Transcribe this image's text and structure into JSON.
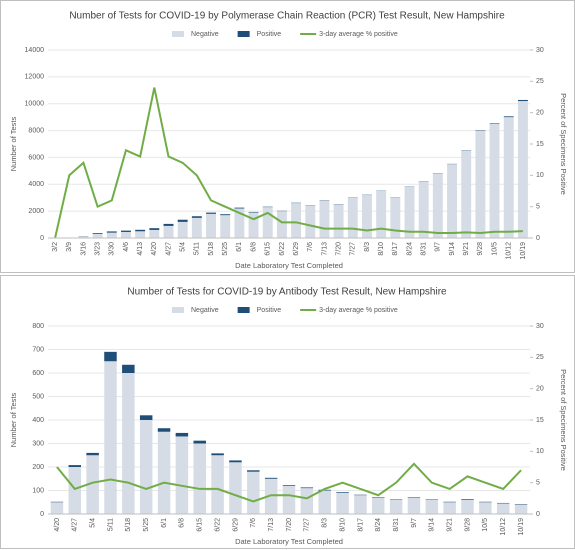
{
  "chart_data": [
    {
      "type": "bar",
      "stacked": true,
      "title": "Number of Tests for COVID-19 by Polymerase Chain Reaction (PCR) Test Result, New Hampshire",
      "x_label": "Date Laboratory Test Completed",
      "y_label": "Number of Tests",
      "y2_label": "Percent of Specimens Positive",
      "categories": [
        "3/2",
        "3/9",
        "3/16",
        "3/23",
        "3/30",
        "4/6",
        "4/13",
        "4/20",
        "4/27",
        "5/4",
        "5/11",
        "5/18",
        "5/25",
        "6/1",
        "6/8",
        "6/15",
        "6/22",
        "6/29",
        "7/6",
        "7/13",
        "7/20",
        "7/27",
        "8/3",
        "8/10",
        "8/17",
        "8/24",
        "8/31",
        "9/7",
        "9/14",
        "9/21",
        "9/28",
        "10/5",
        "10/12",
        "10/19"
      ],
      "series": [
        {
          "name": "Negative",
          "color": "#d6dce5",
          "values": [
            0,
            20,
            100,
            300,
            400,
            450,
            500,
            600,
            900,
            1200,
            1500,
            1800,
            1700,
            2200,
            1900,
            2300,
            2000,
            2600,
            2400,
            2800,
            2500,
            3000,
            3200,
            3500,
            3000,
            3800,
            4200,
            4800,
            5500,
            6500,
            8000,
            8500,
            9000,
            10200
          ]
        },
        {
          "name": "Positive",
          "color": "#1f4e79",
          "values": [
            0,
            5,
            20,
            60,
            90,
            100,
            110,
            130,
            150,
            160,
            120,
            90,
            70,
            60,
            40,
            30,
            25,
            25,
            25,
            20,
            20,
            20,
            20,
            20,
            20,
            20,
            20,
            20,
            20,
            25,
            30,
            40,
            60,
            80
          ]
        },
        {
          "name": "3-day average % positive",
          "color": "#70ad47",
          "type": "line",
          "axis": "y2",
          "values": [
            0,
            10,
            12,
            5,
            6,
            14,
            13,
            24,
            13,
            12,
            10,
            6,
            5,
            4,
            3,
            4,
            2.5,
            2.5,
            2,
            1.5,
            1.5,
            1.5,
            1.2,
            1.5,
            1.2,
            1,
            1,
            0.8,
            0.8,
            0.9,
            0.8,
            1,
            1,
            1.1
          ]
        }
      ],
      "ylim": [
        0,
        14000
      ],
      "yticks": [
        0,
        2000,
        4000,
        6000,
        8000,
        10000,
        12000,
        14000
      ],
      "y2lim": [
        0,
        30
      ],
      "y2ticks": [
        0,
        5,
        10,
        15,
        20,
        25,
        30
      ]
    },
    {
      "type": "bar",
      "stacked": true,
      "title": "Number of Tests for COVID-19 by Antibody Test Result, New Hampshire",
      "x_label": "Date Laboratory Test Completed",
      "y_label": "Number of Tests",
      "y2_label": "Percent of Specimens Positive",
      "categories": [
        "4/20",
        "4/27",
        "5/4",
        "5/11",
        "5/18",
        "5/25",
        "6/1",
        "6/8",
        "6/15",
        "6/22",
        "6/29",
        "7/6",
        "7/13",
        "7/20",
        "7/27",
        "8/3",
        "8/10",
        "8/17",
        "8/24",
        "8/31",
        "9/7",
        "9/14",
        "9/21",
        "9/28",
        "10/5",
        "10/12",
        "10/19"
      ],
      "series": [
        {
          "name": "Negative",
          "color": "#d6dce5",
          "values": [
            50,
            200,
            250,
            650,
            600,
            400,
            350,
            330,
            300,
            250,
            220,
            180,
            150,
            120,
            110,
            100,
            90,
            80,
            70,
            60,
            70,
            60,
            50,
            60,
            50,
            45,
            40
          ]
        },
        {
          "name": "Positive",
          "color": "#1f4e79",
          "values": [
            2,
            8,
            10,
            40,
            35,
            20,
            15,
            15,
            12,
            8,
            8,
            6,
            4,
            3,
            3,
            3,
            3,
            2,
            2,
            2,
            2,
            2,
            2,
            3,
            2,
            2,
            2
          ]
        },
        {
          "name": "3-day average % positive",
          "color": "#70ad47",
          "type": "line",
          "axis": "y2",
          "values": [
            7.5,
            4,
            5,
            5.5,
            5,
            4,
            5,
            4.5,
            4,
            4,
            3,
            2,
            3,
            3,
            2.5,
            4,
            5,
            4,
            3,
            5,
            8,
            5,
            4,
            6,
            5,
            4,
            7
          ]
        }
      ],
      "ylim": [
        0,
        800
      ],
      "yticks": [
        0,
        100,
        200,
        300,
        400,
        500,
        600,
        700,
        800
      ],
      "y2lim": [
        0,
        30
      ],
      "y2ticks": [
        0,
        5,
        10,
        15,
        20,
        25,
        30
      ]
    }
  ]
}
